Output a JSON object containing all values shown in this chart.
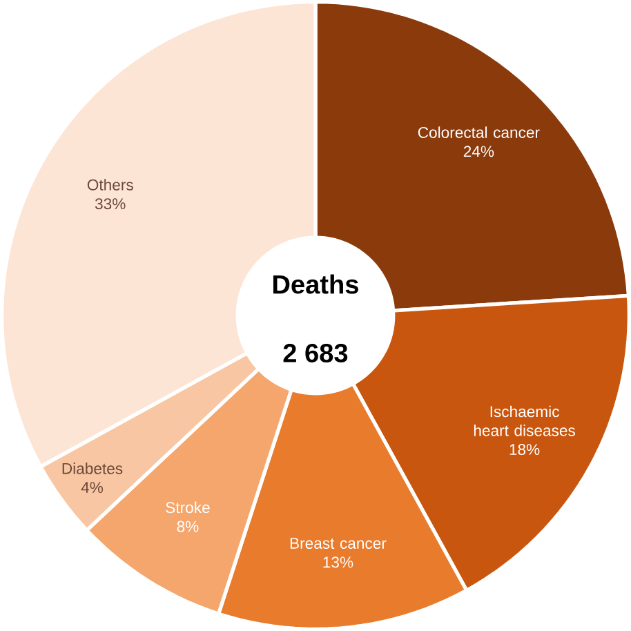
{
  "chart_data": {
    "type": "donut",
    "title": "Deaths",
    "subtitle": "2 683",
    "categories": [
      "Colorectal cancer",
      "Ischaemic heart diseases",
      "Breast cancer",
      "Stroke",
      "Diabetes",
      "Others"
    ],
    "values": [
      24,
      18,
      13,
      8,
      4,
      33
    ],
    "value_labels": [
      "24%",
      "18%",
      "13%",
      "8%",
      "4%",
      "33%"
    ],
    "colors": [
      "#8b3a0c",
      "#c9560f",
      "#e97b2c",
      "#f5a66c",
      "#f8c6a2",
      "#fde5d6"
    ]
  }
}
